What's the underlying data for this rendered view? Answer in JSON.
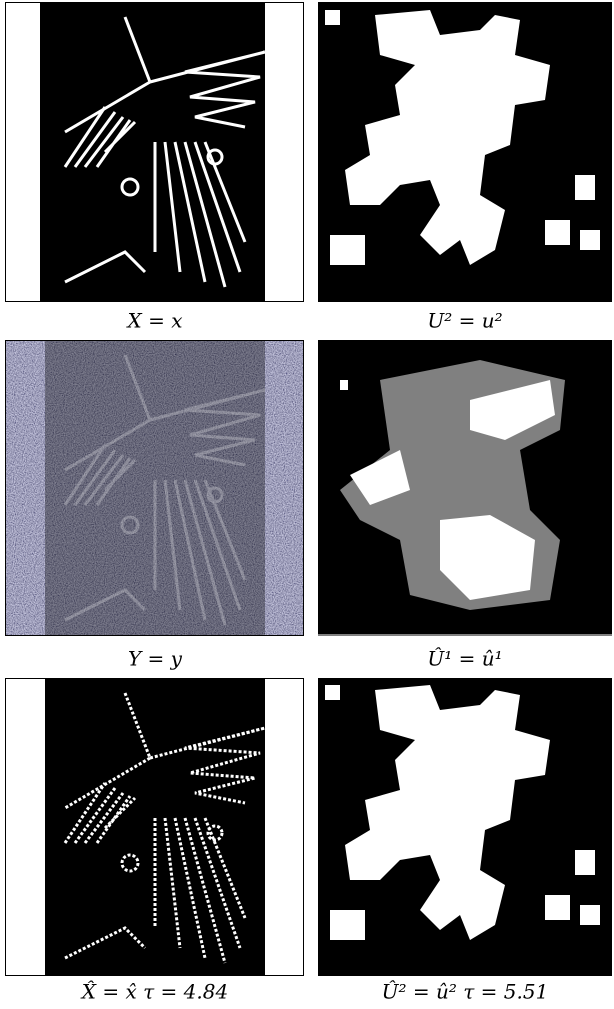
{
  "figure": {
    "captions": [
      "X = x",
      "U² = u²",
      "Y = y",
      "Û¹ = û¹",
      "X̂ = x̂  τ = 4.84",
      "Û² = û²  τ = 5.51"
    ]
  }
}
